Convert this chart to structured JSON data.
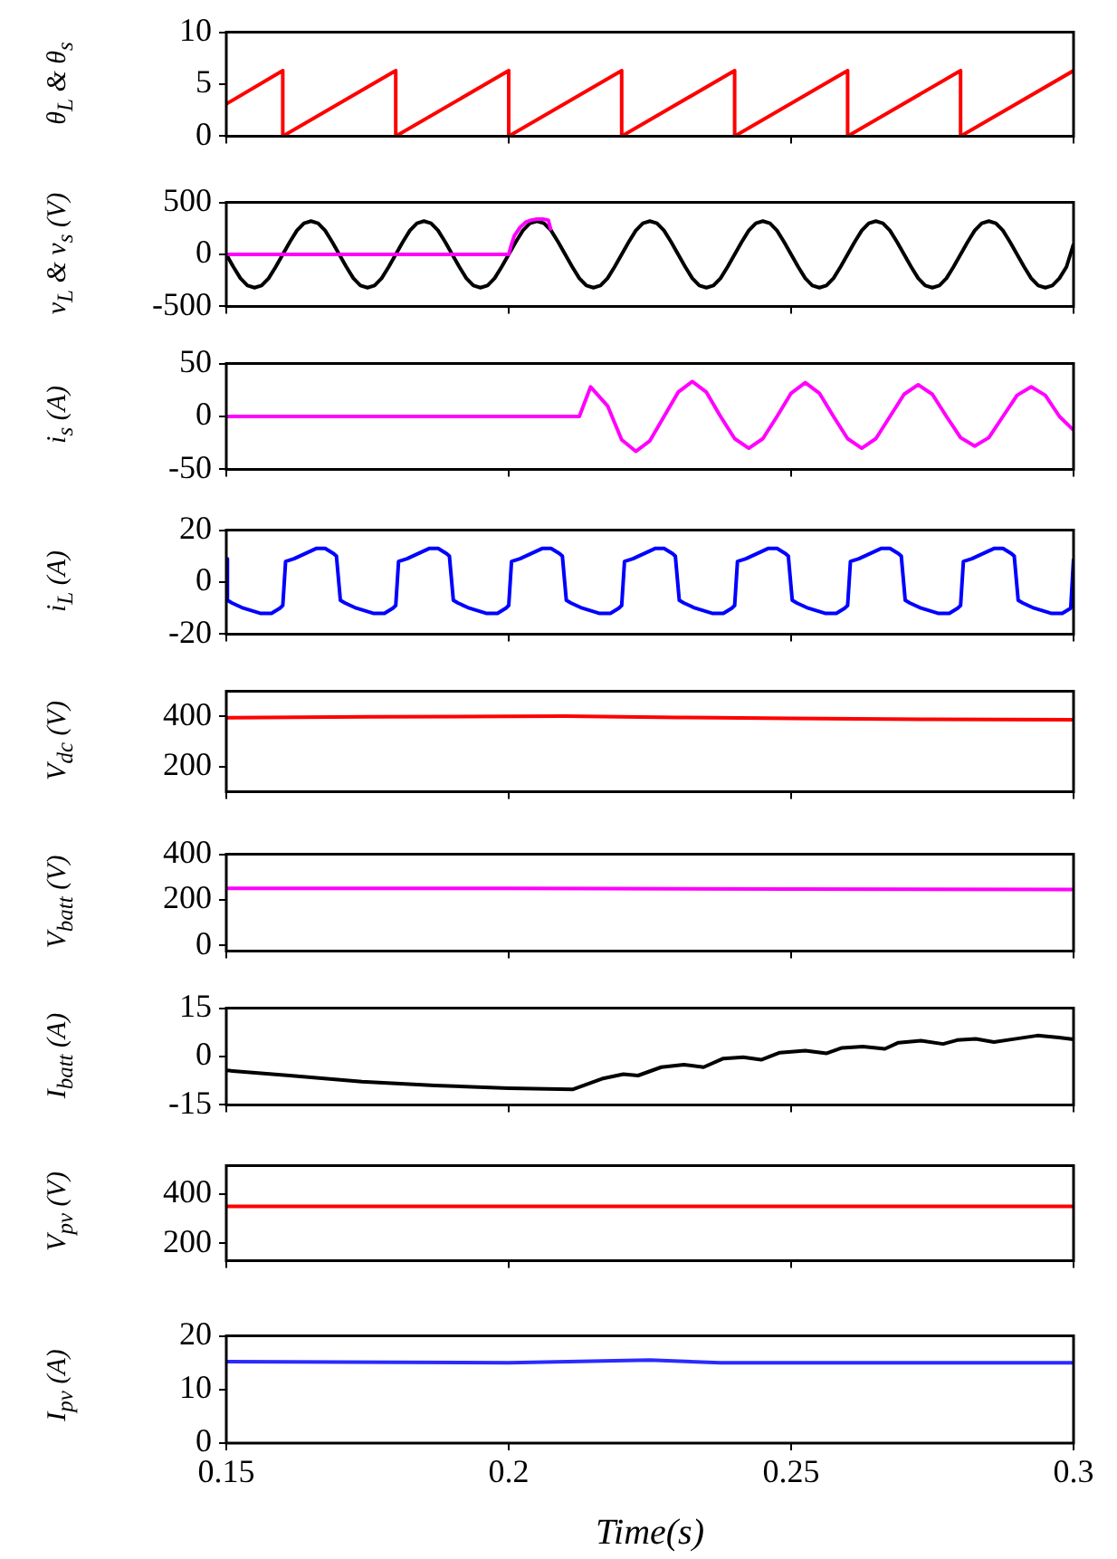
{
  "chart_data": [
    {
      "type": "line",
      "ylabel": "θ$_{L}$ & θ$_{s}$",
      "xlim": [
        0.15,
        0.3
      ],
      "xticks": [
        0.15,
        0.2,
        0.25,
        0.3
      ],
      "ylim": [
        0,
        10
      ],
      "yticks": [
        0,
        5,
        10
      ],
      "tick_labels": "y",
      "series": [
        {
          "color": "#ff0000",
          "x": [
            0.15,
            0.16,
            0.16,
            0.18,
            0.18,
            0.2,
            0.2,
            0.22,
            0.22,
            0.24,
            0.24,
            0.26,
            0.26,
            0.28,
            0.28,
            0.3
          ],
          "values": [
            3.1,
            6.3,
            0,
            6.3,
            0,
            6.3,
            0,
            6.3,
            0,
            6.3,
            0,
            6.3,
            0,
            6.3,
            0,
            6.3
          ]
        }
      ]
    },
    {
      "type": "line",
      "ylabel": "v$_{L}$ & v$_{s}$ (V)",
      "xlim": [
        0.15,
        0.3
      ],
      "xticks": [
        0.15,
        0.2,
        0.25,
        0.3
      ],
      "ylim": [
        -500,
        500
      ],
      "yticks": [
        -500,
        0,
        500
      ],
      "tick_labels": "y",
      "series": [
        {
          "color": "#000000",
          "x": [
            0.15,
            0.15125,
            0.1525,
            0.15375,
            0.155,
            0.15625,
            0.1575,
            0.15875,
            0.16,
            0.16125,
            0.1625,
            0.16375,
            0.165,
            0.16625,
            0.1675,
            0.16875,
            0.17,
            0.17125,
            0.1725,
            0.17375,
            0.175,
            0.17625,
            0.1775,
            0.17875,
            0.18,
            0.18125,
            0.1825,
            0.18375,
            0.185,
            0.18625,
            0.1875,
            0.18875,
            0.19,
            0.19125,
            0.1925,
            0.19375,
            0.195,
            0.19625,
            0.1975,
            0.19875,
            0.2,
            0.20125,
            0.2025,
            0.20375,
            0.205,
            0.20625,
            0.2075,
            0.20875,
            0.21,
            0.21125,
            0.2125,
            0.21375,
            0.215,
            0.21625,
            0.2175,
            0.21875,
            0.22,
            0.22125,
            0.2225,
            0.22375,
            0.225,
            0.22625,
            0.2275,
            0.22875,
            0.23,
            0.23125,
            0.2325,
            0.23375,
            0.235,
            0.23625,
            0.2375,
            0.23875,
            0.24,
            0.24125,
            0.2425,
            0.24375,
            0.245,
            0.24625,
            0.2475,
            0.24875,
            0.25,
            0.25125,
            0.2525,
            0.25375,
            0.255,
            0.25625,
            0.2575,
            0.25875,
            0.26,
            0.26125,
            0.2625,
            0.26375,
            0.265,
            0.26625,
            0.2675,
            0.26875,
            0.27,
            0.27125,
            0.2725,
            0.27375,
            0.275,
            0.27625,
            0.2775,
            0.27875,
            0.28,
            0.28125,
            0.2825,
            0.28375,
            0.285,
            0.28625,
            0.2875,
            0.28875,
            0.29,
            0.29125,
            0.2925,
            0.29375,
            0.295,
            0.29625,
            0.2975,
            0.29875,
            0.3
          ],
          "values": [
            0,
            -120,
            -230,
            -300,
            -320,
            -300,
            -230,
            -120,
            0,
            120,
            230,
            300,
            320,
            300,
            230,
            120,
            0,
            -120,
            -230,
            -300,
            -320,
            -300,
            -230,
            -120,
            0,
            120,
            230,
            300,
            320,
            300,
            230,
            120,
            0,
            -120,
            -230,
            -300,
            -320,
            -300,
            -230,
            -120,
            0,
            120,
            230,
            300,
            320,
            300,
            230,
            120,
            0,
            -120,
            -230,
            -300,
            -320,
            -300,
            -230,
            -120,
            0,
            120,
            230,
            300,
            320,
            300,
            230,
            120,
            0,
            -120,
            -230,
            -300,
            -320,
            -300,
            -230,
            -120,
            0,
            120,
            230,
            300,
            320,
            300,
            230,
            120,
            0,
            -120,
            -230,
            -300,
            -320,
            -300,
            -230,
            -120,
            0,
            120,
            230,
            300,
            320,
            300,
            230,
            120,
            0,
            -120,
            -230,
            -300,
            -320,
            -300,
            -230,
            -120,
            0,
            120,
            230,
            300,
            320,
            300,
            230,
            120,
            0,
            -120,
            -230,
            -300,
            -320,
            -300,
            -230,
            -120,
            100
          ]
        },
        {
          "color": "#ff00ff",
          "x": [
            0.15,
            0.2,
            0.2005,
            0.201,
            0.202,
            0.203,
            0.204,
            0.205,
            0.206,
            0.207,
            0.2075
          ],
          "values": [
            0,
            0,
            100,
            180,
            260,
            310,
            330,
            340,
            340,
            330,
            230
          ]
        }
      ]
    },
    {
      "type": "line",
      "ylabel": "i$_{s}$ (A)",
      "xlim": [
        0.15,
        0.3
      ],
      "xticks": [
        0.15,
        0.2,
        0.25,
        0.3
      ],
      "ylim": [
        -50,
        50
      ],
      "yticks": [
        -50,
        0,
        50
      ],
      "tick_labels": "y",
      "series": [
        {
          "color": "#ff00ff",
          "x": [
            0.15,
            0.2125,
            0.2145,
            0.2175,
            0.22,
            0.2225,
            0.225,
            0.2275,
            0.23,
            0.2325,
            0.235,
            0.2375,
            0.24,
            0.2425,
            0.245,
            0.2475,
            0.25,
            0.2525,
            0.255,
            0.2575,
            0.26,
            0.2625,
            0.265,
            0.2675,
            0.27,
            0.2725,
            0.275,
            0.2775,
            0.28,
            0.2825,
            0.285,
            0.2875,
            0.29,
            0.2925,
            0.295,
            0.2975,
            0.3
          ],
          "values": [
            0,
            0,
            28,
            10,
            -22,
            -33,
            -23,
            0,
            23,
            33,
            23,
            0,
            -21,
            -30,
            -21,
            0,
            22,
            32,
            22,
            0,
            -21,
            -30,
            -21,
            0,
            21,
            30,
            21,
            0,
            -20,
            -28,
            -20,
            0,
            20,
            28,
            20,
            0,
            -13
          ]
        }
      ]
    },
    {
      "type": "line",
      "ylabel": "i$_{L}$ (A)",
      "xlim": [
        0.15,
        0.3
      ],
      "xticks": [
        0.15,
        0.2,
        0.25,
        0.3
      ],
      "ylim": [
        -20,
        20
      ],
      "yticks": [
        -20,
        0,
        20
      ],
      "tick_labels": "y",
      "series": [
        {
          "color": "#0000ff",
          "x": [
            0.15,
            0.1502,
            0.151,
            0.153,
            0.156,
            0.158,
            0.1595,
            0.16,
            0.1605,
            0.162,
            0.164,
            0.166,
            0.1675,
            0.169,
            0.1695,
            0.1702,
            0.171,
            0.173,
            0.176,
            0.178,
            0.1795,
            0.18,
            0.1805,
            0.182,
            0.184,
            0.186,
            0.1875,
            0.189,
            0.1895,
            0.1902,
            0.191,
            0.193,
            0.196,
            0.198,
            0.1995,
            0.2,
            0.2005,
            0.202,
            0.204,
            0.206,
            0.2075,
            0.209,
            0.2095,
            0.2102,
            0.211,
            0.213,
            0.216,
            0.218,
            0.2195,
            0.22,
            0.2205,
            0.222,
            0.224,
            0.226,
            0.2275,
            0.229,
            0.2295,
            0.2302,
            0.231,
            0.233,
            0.236,
            0.238,
            0.2395,
            0.24,
            0.2405,
            0.242,
            0.244,
            0.246,
            0.2475,
            0.249,
            0.2495,
            0.2502,
            0.251,
            0.253,
            0.256,
            0.258,
            0.2595,
            0.26,
            0.2605,
            0.262,
            0.264,
            0.266,
            0.2675,
            0.269,
            0.2695,
            0.2702,
            0.271,
            0.273,
            0.276,
            0.278,
            0.2795,
            0.28,
            0.2805,
            0.282,
            0.284,
            0.286,
            0.2875,
            0.289,
            0.2895,
            0.2902,
            0.291,
            0.293,
            0.296,
            0.298,
            0.2995,
            0.3
          ],
          "values": [
            9,
            -7,
            -8,
            -10,
            -12,
            -12,
            -10,
            -9,
            8,
            9,
            11,
            13,
            13,
            11,
            10,
            -7,
            -8,
            -10,
            -12,
            -12,
            -10,
            -9,
            8,
            9,
            11,
            13,
            13,
            11,
            10,
            -7,
            -8,
            -10,
            -12,
            -12,
            -10,
            -9,
            8,
            9,
            11,
            13,
            13,
            11,
            10,
            -7,
            -8,
            -10,
            -12,
            -12,
            -10,
            -9,
            8,
            9,
            11,
            13,
            13,
            11,
            10,
            -7,
            -8,
            -10,
            -12,
            -12,
            -10,
            -9,
            8,
            9,
            11,
            13,
            13,
            11,
            10,
            -7,
            -8,
            -10,
            -12,
            -12,
            -10,
            -9,
            8,
            9,
            11,
            13,
            13,
            11,
            10,
            -7,
            -8,
            -10,
            -12,
            -12,
            -10,
            -9,
            8,
            9,
            11,
            13,
            13,
            11,
            10,
            -7,
            -8,
            -10,
            -12,
            -12,
            -10,
            9
          ]
        }
      ]
    },
    {
      "type": "line",
      "ylabel": "V$_{dc}$ (V)",
      "xlim": [
        0.15,
        0.3
      ],
      "xticks": [
        0.15,
        0.2,
        0.25,
        0.3
      ],
      "ylim": [
        100,
        500
      ],
      "yticks": [
        200,
        400
      ],
      "tick_labels": "y",
      "series": [
        {
          "color": "#ff0000",
          "x": [
            0.15,
            0.175,
            0.2,
            0.21,
            0.23,
            0.25,
            0.275,
            0.3
          ],
          "values": [
            395,
            398,
            400,
            401,
            396,
            392,
            388,
            387
          ]
        }
      ]
    },
    {
      "type": "line",
      "ylabel": "V$_{batt}$ (V)",
      "xlim": [
        0.15,
        0.3
      ],
      "xticks": [
        0.15,
        0.2,
        0.25,
        0.3
      ],
      "ylim": [
        -25,
        400
      ],
      "yticks": [
        0,
        200,
        400
      ],
      "tick_labels": "y",
      "series": [
        {
          "color": "#ff00ff",
          "x": [
            0.15,
            0.2,
            0.25,
            0.3
          ],
          "values": [
            250,
            250,
            247,
            245
          ]
        }
      ]
    },
    {
      "type": "line",
      "ylabel": "I$_{batt}$ (A)",
      "xlim": [
        0.15,
        0.3
      ],
      "xticks": [
        0.15,
        0.2,
        0.25,
        0.3
      ],
      "ylim": [
        -15,
        15
      ],
      "yticks": [
        -15,
        0,
        15
      ],
      "tick_labels": "y",
      "series": [
        {
          "color": "#000000",
          "x": [
            0.15,
            0.1612,
            0.174,
            0.187,
            0.2,
            0.2113,
            0.2165,
            0.2203,
            0.2229,
            0.227,
            0.231,
            0.2345,
            0.238,
            0.2415,
            0.2447,
            0.248,
            0.2525,
            0.2563,
            0.259,
            0.2627,
            0.2666,
            0.269,
            0.273,
            0.2769,
            0.2794,
            0.2827,
            0.2859,
            0.289,
            0.2936,
            0.2974,
            0.3
          ],
          "values": [
            -4.3,
            -5.9,
            -7.8,
            -9,
            -9.8,
            -10.2,
            -6.9,
            -5.5,
            -5.9,
            -3.3,
            -2.5,
            -3.3,
            -0.6,
            -0.2,
            -1,
            1.2,
            1.8,
            1,
            2.7,
            3.1,
            2.4,
            4.3,
            4.9,
            3.9,
            5.1,
            5.5,
            4.5,
            5.3,
            6.5,
            5.9,
            5.3
          ]
        }
      ]
    },
    {
      "type": "line",
      "ylabel": "V$_{pv}$ (V)",
      "xlim": [
        0.15,
        0.3
      ],
      "xticks": [
        0.15,
        0.2,
        0.25,
        0.3
      ],
      "ylim": [
        130,
        515
      ],
      "yticks": [
        200,
        400
      ],
      "tick_labels": "y",
      "series": [
        {
          "color": "#ff0000",
          "x": [
            0.15,
            0.2,
            0.2375,
            0.3
          ],
          "values": [
            350,
            350,
            350,
            350
          ]
        }
      ]
    },
    {
      "type": "line",
      "ylabel": "I$_{pv}$ (A)",
      "xlabel": "Time(s)",
      "xlim": [
        0.15,
        0.3
      ],
      "xticks": [
        0.15,
        0.2,
        0.25,
        0.3
      ],
      "ylim": [
        0,
        20
      ],
      "yticks": [
        0,
        10,
        20
      ],
      "series": [
        {
          "color": "#2a2aff",
          "x": [
            0.15,
            0.2,
            0.225,
            0.2375,
            0.3
          ],
          "values": [
            15.2,
            15,
            15.5,
            15,
            15
          ]
        }
      ]
    }
  ]
}
